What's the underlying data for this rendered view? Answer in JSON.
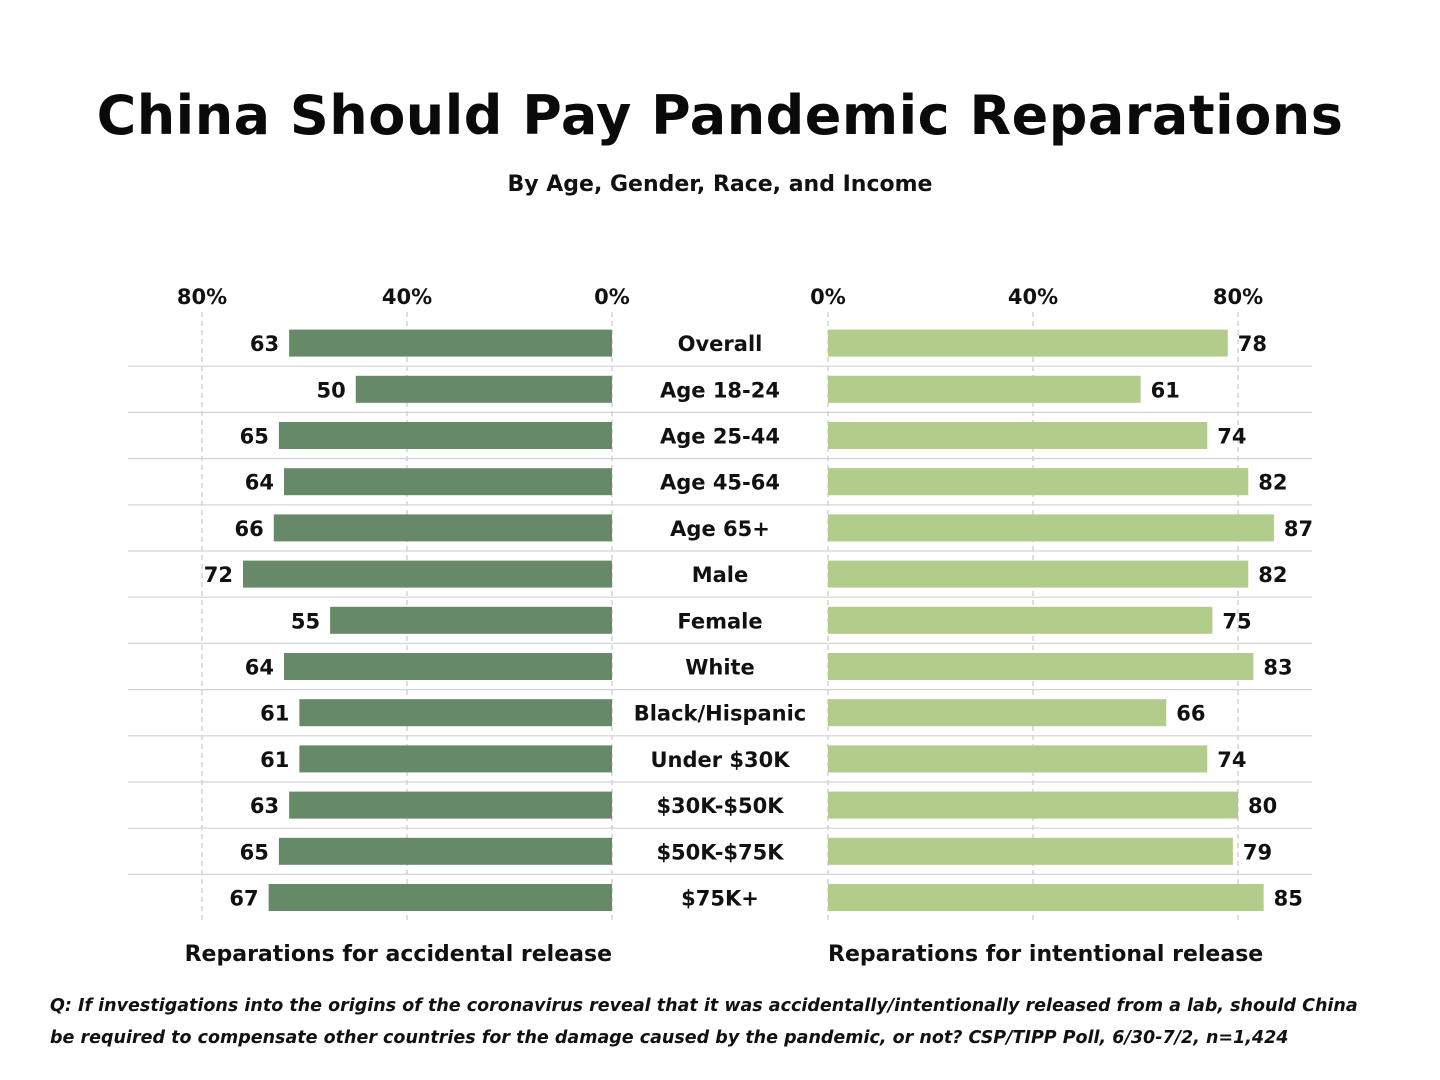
{
  "title": "China Should Pay Pandemic Reparations",
  "subtitle": "By Age, Gender, Race, and Income",
  "footnote": {
    "line1": "Q:  If investigations into the origins of the coronavirus reveal that it was accidentally/intentionally released from a lab, should China",
    "line2": "be required to compensate other countries for the damage caused by the pandemic, or not?  CSP/TIPP Poll, 6/30-7/2, n=1,424"
  },
  "colors": {
    "accidental": "#668a68",
    "intentional": "#b1cc8b",
    "grid": "#c8c8c8",
    "separator": "#d3d3d3"
  },
  "chart_data": [
    {
      "type": "bar",
      "orientation": "horizontal",
      "direction": "right-to-left",
      "xlabel": "Reparations for accidental release",
      "xlim": [
        0,
        80
      ],
      "xticks": [
        80,
        40,
        0
      ],
      "tick_labels": [
        "80%",
        "40%",
        "0%"
      ],
      "grid": "vertical dashed",
      "categories": [
        "Overall",
        "Age 18-24",
        "Age 25-44",
        "Age 45-64",
        "Age 65+",
        "Male",
        "Female",
        "White",
        "Black/Hispanic",
        "Under $30K",
        "$30K-$50K",
        "$50K-$75K",
        "$75K+"
      ],
      "values": [
        63,
        50,
        65,
        64,
        66,
        72,
        55,
        64,
        61,
        61,
        63,
        65,
        67
      ]
    },
    {
      "type": "bar",
      "orientation": "horizontal",
      "direction": "left-to-right",
      "xlabel": "Reparations for intentional release",
      "xlim": [
        0,
        80
      ],
      "xticks": [
        0,
        40,
        80
      ],
      "tick_labels": [
        "0%",
        "40%",
        "80%"
      ],
      "grid": "vertical dashed",
      "categories": [
        "Overall",
        "Age 18-24",
        "Age 25-44",
        "Age 45-64",
        "Age 65+",
        "Male",
        "Female",
        "White",
        "Black/Hispanic",
        "Under $30K",
        "$30K-$50K",
        "$50K-$75K",
        "$75K+"
      ],
      "values": [
        78,
        61,
        74,
        82,
        87,
        82,
        75,
        83,
        66,
        74,
        80,
        79,
        85
      ]
    }
  ]
}
